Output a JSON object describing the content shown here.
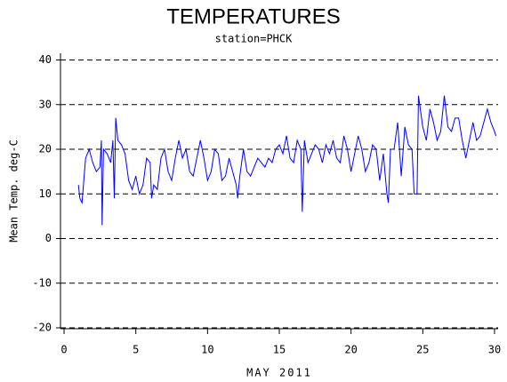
{
  "chart_data": {
    "type": "line",
    "title": "TEMPERATURES",
    "subtitle": "station=PHCK",
    "x_label": "MAY 2011",
    "y_label": "Mean Temp. deg-C",
    "color": "#0000ff",
    "grid": true,
    "xlim": [
      -0.25,
      30.25
    ],
    "xticks": [
      0,
      5,
      10,
      15,
      20,
      25,
      30
    ],
    "ylim": [
      -20.2,
      41.5
    ],
    "yticks": [
      -20,
      -10,
      0,
      10,
      20,
      30,
      40
    ],
    "x": [
      1,
      1.1,
      1.25,
      1.5,
      1.75,
      2,
      2.25,
      2.5,
      2.6,
      2.65,
      2.75,
      3,
      3.25,
      3.4,
      3.5,
      3.6,
      3.75,
      4,
      4.25,
      4.5,
      4.75,
      5,
      5.25,
      5.5,
      5.75,
      6,
      6.1,
      6.25,
      6.5,
      6.75,
      7,
      7.25,
      7.5,
      7.75,
      8,
      8.25,
      8.5,
      8.75,
      9,
      9.25,
      9.5,
      9.75,
      10,
      10.25,
      10.5,
      10.75,
      11,
      11.25,
      11.5,
      11.75,
      12,
      12.1,
      12.25,
      12.5,
      12.75,
      13,
      13.25,
      13.5,
      13.75,
      14,
      14.25,
      14.5,
      14.75,
      15,
      15.25,
      15.5,
      15.75,
      16,
      16.25,
      16.5,
      16.6,
      16.75,
      17,
      17.25,
      17.5,
      17.75,
      18,
      18.25,
      18.5,
      18.75,
      19,
      19.25,
      19.5,
      19.75,
      20,
      20.25,
      20.5,
      20.75,
      21,
      21.25,
      21.5,
      21.75,
      22,
      22.25,
      22.5,
      22.6,
      22.75,
      23,
      23.25,
      23.5,
      23.75,
      24,
      24.25,
      24.4,
      24.6,
      24.7,
      25,
      25.25,
      25.5,
      25.75,
      26,
      26.25,
      26.5,
      26.75,
      27,
      27.25,
      27.5,
      27.75,
      28,
      28.25,
      28.5,
      28.75,
      29,
      29.25,
      29.5,
      29.75,
      30,
      30.1
    ],
    "values": [
      12,
      9,
      8,
      18,
      20,
      17,
      15,
      16,
      22,
      3,
      20,
      19,
      17,
      22,
      9,
      27,
      22,
      21,
      19,
      13,
      11,
      14,
      10,
      12,
      18,
      17,
      9,
      12,
      11,
      18,
      20,
      15,
      13,
      18,
      22,
      18,
      20,
      15,
      14,
      18,
      22,
      18,
      13,
      15,
      20,
      19,
      13,
      14,
      18,
      15,
      12,
      9,
      14,
      20,
      15,
      14,
      16,
      18,
      17,
      16,
      18,
      17,
      20,
      21,
      19,
      23,
      18,
      17,
      22,
      20,
      6,
      22,
      17,
      19,
      21,
      20,
      17,
      21,
      19,
      22,
      18,
      17,
      23,
      20,
      15,
      19,
      23,
      20,
      15,
      17,
      21,
      20,
      13,
      19,
      10,
      8,
      20,
      20,
      26,
      14,
      25,
      21,
      20,
      10,
      10,
      32,
      25,
      22,
      29,
      26,
      22,
      24,
      32,
      25,
      24,
      27,
      27,
      22,
      18,
      22,
      26,
      22,
      23,
      26,
      29,
      26,
      24,
      23
    ]
  }
}
